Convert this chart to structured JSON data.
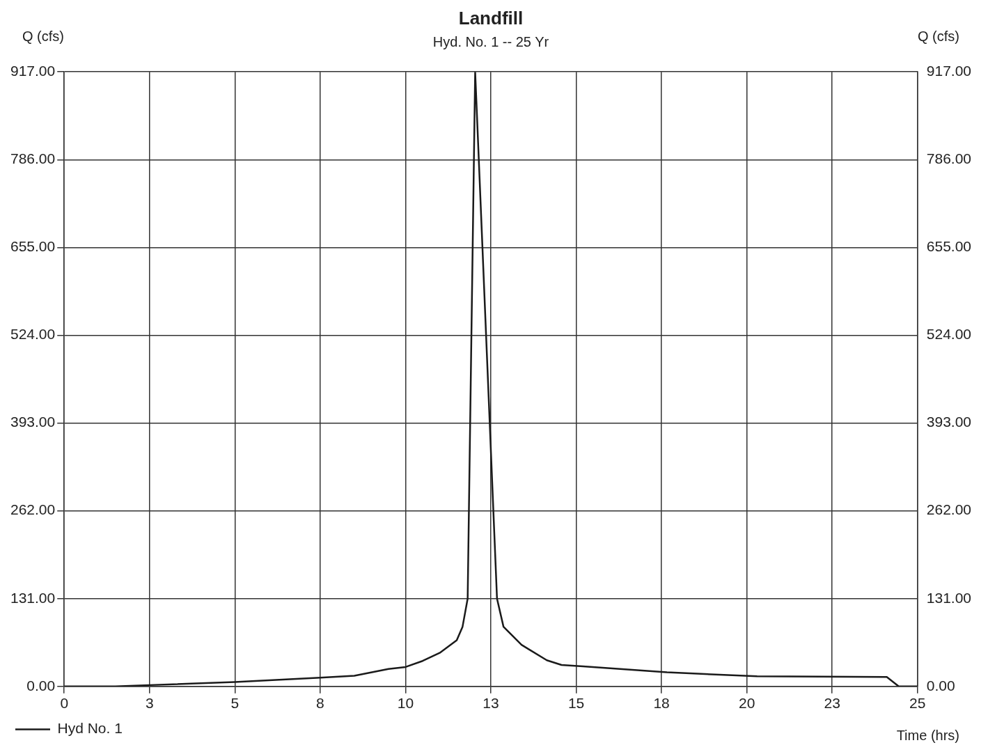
{
  "chart_data": {
    "type": "line",
    "title": "Landfill",
    "subtitle": "Hyd. No. 1 -- 25 Yr",
    "xlabel": "Time (hrs)",
    "ylabel": "Q (cfs)",
    "y2label": "Q (cfs)",
    "x": [
      0,
      1.5,
      2.5,
      5,
      7.5,
      8.5,
      9.5,
      10,
      10.5,
      11,
      11.5,
      11.67,
      11.82,
      12.04,
      12.68,
      12.87,
      13.4,
      14.14,
      14.57,
      15.2,
      17.66,
      20.3,
      24.1,
      24.45,
      25
    ],
    "series": [
      {
        "name": "Hyd No. 1",
        "color": "#1a1a1a",
        "values": [
          0,
          0,
          2,
          6.5,
          13,
          16,
          26,
          29,
          38,
          50,
          69,
          89,
          131,
          917,
          131,
          89,
          62,
          39,
          32,
          30,
          21,
          15,
          14,
          0,
          0
        ]
      }
    ],
    "xlim": [
      0,
      25
    ],
    "xticks": [
      {
        "value": 0,
        "label": "0"
      },
      {
        "value": 2.5,
        "label": "3"
      },
      {
        "value": 5,
        "label": "5"
      },
      {
        "value": 7.5,
        "label": "8"
      },
      {
        "value": 10,
        "label": "10"
      },
      {
        "value": 12.5,
        "label": "13"
      },
      {
        "value": 15,
        "label": "15"
      },
      {
        "value": 17.5,
        "label": "18"
      },
      {
        "value": 20,
        "label": "20"
      },
      {
        "value": 22.5,
        "label": "23"
      },
      {
        "value": 25,
        "label": "25"
      }
    ],
    "ylim": [
      0,
      917
    ],
    "yticks": [
      {
        "value": 0,
        "label": "0.00"
      },
      {
        "value": 131,
        "label": "131.00"
      },
      {
        "value": 262,
        "label": "262.00"
      },
      {
        "value": 393,
        "label": "393.00"
      },
      {
        "value": 524,
        "label": "524.00"
      },
      {
        "value": 655,
        "label": "655.00"
      },
      {
        "value": 786,
        "label": "786.00"
      },
      {
        "value": 917,
        "label": "917.00"
      }
    ],
    "y2lim": [
      0,
      917
    ],
    "y2ticks": [
      {
        "value": 0,
        "label": "0.00"
      },
      {
        "value": 131,
        "label": "131.00"
      },
      {
        "value": 262,
        "label": "262.00"
      },
      {
        "value": 393,
        "label": "393.00"
      },
      {
        "value": 524,
        "label": "524.00"
      },
      {
        "value": 655,
        "label": "655.00"
      },
      {
        "value": 786,
        "label": "786.00"
      },
      {
        "value": 917,
        "label": "917.00"
      }
    ],
    "grid": true,
    "legend": "bottom left",
    "marker": "none",
    "line_style": "solid"
  }
}
